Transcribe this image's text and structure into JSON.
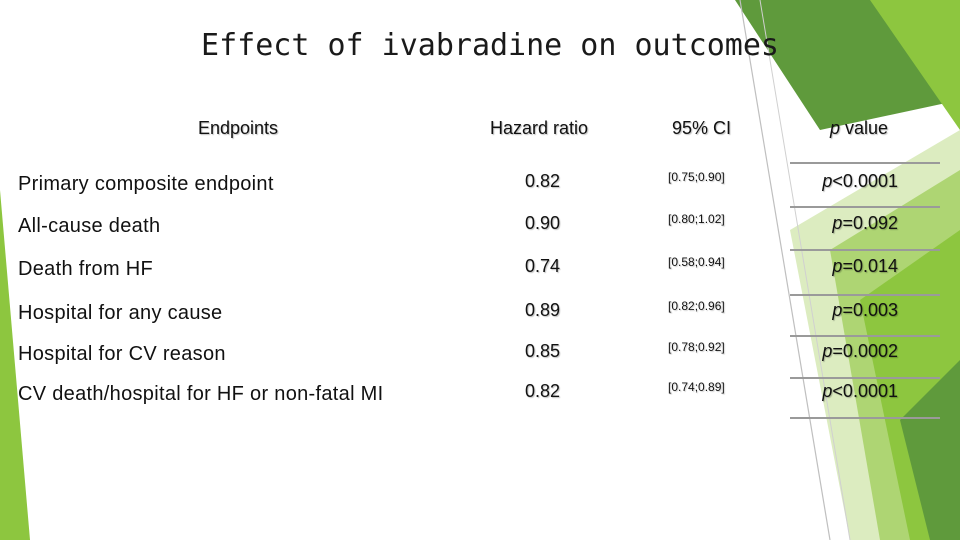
{
  "slide": {
    "title": "Effect of ivabradine on outcomes",
    "theme": {
      "accent_green": "#8dc63f",
      "dark_green": "#3f7a2a",
      "mid_green": "#6aa84f"
    }
  },
  "table": {
    "headers": {
      "endpoints": "Endpoints",
      "hazard_ratio": "Hazard ratio",
      "ci": "95% CI",
      "p_value_italic": "p",
      "p_value_rest": " value"
    },
    "rows": [
      {
        "endpoint": "Primary composite endpoint",
        "hazard_ratio": "0.82",
        "ci": "[0.75;0.90]",
        "p_prefix": "p",
        "p_rest": "<0.0001"
      },
      {
        "endpoint": "All-cause death",
        "hazard_ratio": "0.90",
        "ci": "[0.80;1.02]",
        "p_prefix": "p",
        "p_rest": "=0.092"
      },
      {
        "endpoint": "Death from HF",
        "hazard_ratio": "0.74",
        "ci": "[0.58;0.94]",
        "p_prefix": "p",
        "p_rest": "=0.014"
      },
      {
        "endpoint": "Hospital for any cause",
        "hazard_ratio": "0.89",
        "ci": "[0.82;0.96]",
        "p_prefix": "p",
        "p_rest": "=0.003"
      },
      {
        "endpoint": "Hospital for CV reason",
        "hazard_ratio": "0.85",
        "ci": "[0.78;0.92]",
        "p_prefix": "p",
        "p_rest": "=0.0002"
      },
      {
        "endpoint": "CV death/hospital for HF or non-fatal MI",
        "hazard_ratio": "0.82",
        "ci": "[0.74;0.89]",
        "p_prefix": "p",
        "p_rest": "<0.0001"
      }
    ]
  }
}
